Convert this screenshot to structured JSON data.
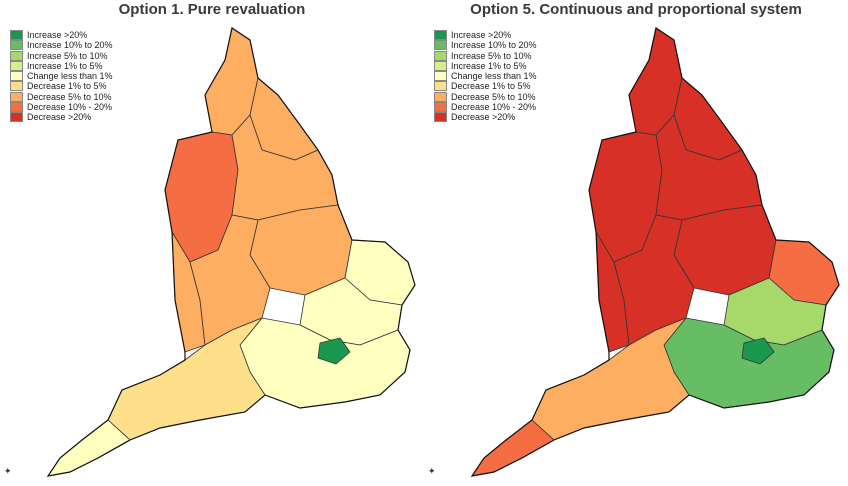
{
  "palette": [
    "#1a9850",
    "#66bd63",
    "#a6d96a",
    "#d9ef8b",
    "#ffffbf",
    "#fee08b",
    "#fdae61",
    "#f46d43",
    "#d73027"
  ],
  "legend_labels": [
    "Increase >20%",
    "Increase 10% to 20%",
    "Increase 5% to 10%",
    "Increase 1% to 5%",
    "Change less than 1%",
    "Decrease 1% to 5%",
    "Decrease 5% to 10%",
    "Decrease 10% - 20%",
    "Decrease >20%"
  ],
  "maps": [
    {
      "title": "Option 1. Pure revaluation",
      "region_classes": {
        "north_east": 6,
        "north_west": 7,
        "cumbria": 6,
        "yorkshire": 6,
        "east_midlands": 6,
        "west_midlands": 6,
        "east_anglia": 4,
        "east": 4,
        "london": 0,
        "south_east": 4,
        "south_west": 5,
        "cornwall": 4,
        "wales_border": 6
      }
    },
    {
      "title": "Option 5. Continuous and proportional system",
      "region_classes": {
        "north_east": 8,
        "north_west": 8,
        "cumbria": 8,
        "yorkshire": 8,
        "east_midlands": 8,
        "west_midlands": 8,
        "east_anglia": 7,
        "east": 2,
        "london": 0,
        "south_east": 1,
        "south_west": 6,
        "cornwall": 7,
        "wales_border": 8
      }
    }
  ],
  "north_arrow_icon": "compass-icon"
}
